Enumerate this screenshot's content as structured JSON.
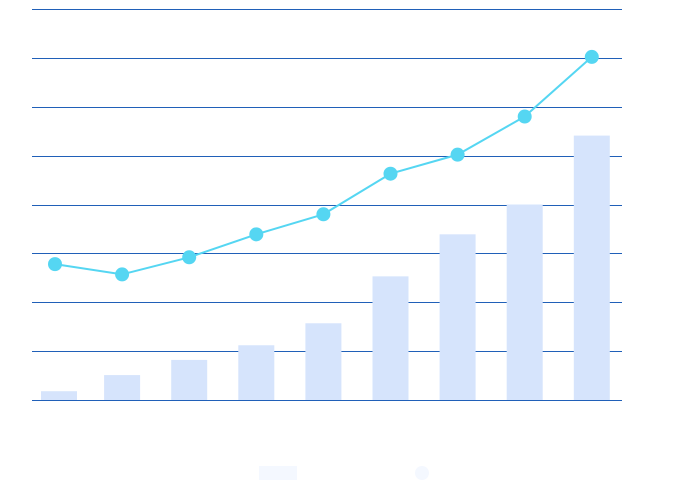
{
  "chart_data": {
    "type": "bar+line",
    "title": "",
    "xlabel": "",
    "ylabel": "",
    "categories": [
      "",
      "",
      "",
      "",
      "",
      "",
      "",
      "",
      ""
    ],
    "ylim": [
      0,
      8
    ],
    "grid": true,
    "legend": "bottom",
    "series": [
      {
        "type": "bar",
        "color": "#d6e4fc",
        "values": [
          0.18,
          0.51,
          0.82,
          1.12,
          1.57,
          2.53,
          3.39,
          4.0,
          5.41
        ]
      },
      {
        "type": "line",
        "color": "#55d6f2",
        "values": [
          2.78,
          2.57,
          2.92,
          3.39,
          3.8,
          4.63,
          5.02,
          5.8,
          7.02
        ]
      }
    ],
    "gridline_color": "#2060b8"
  }
}
